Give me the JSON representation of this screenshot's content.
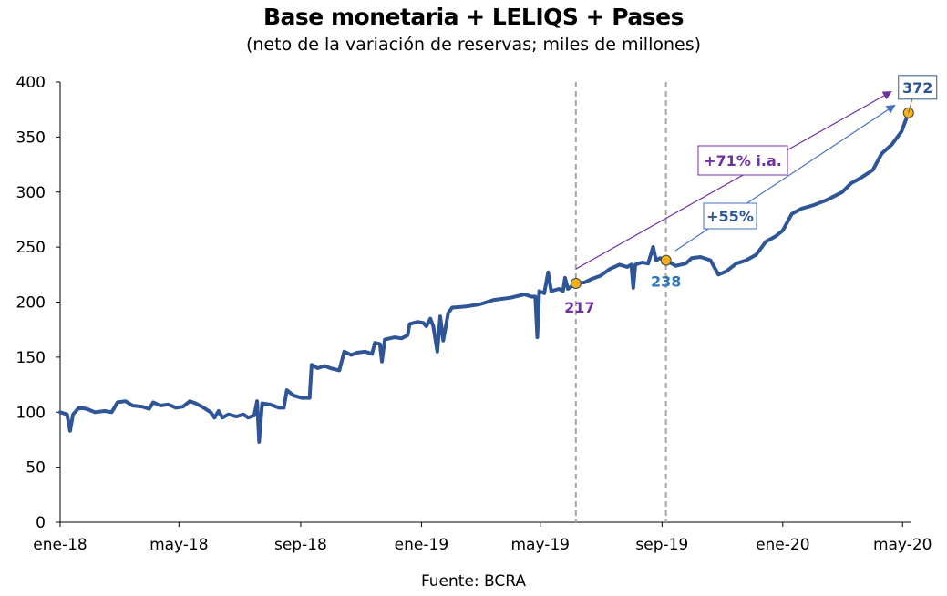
{
  "chart_data": {
    "type": "line",
    "title": "Base monetaria + LELIQS + Pases",
    "subtitle": "(neto de la variación de reservas; miles de millones)",
    "source": "Fuente: BCRA",
    "xlabel": "",
    "ylabel": "",
    "ylim": [
      0,
      400
    ],
    "yticks": [
      0,
      50,
      100,
      150,
      200,
      250,
      300,
      350,
      400
    ],
    "xlim": [
      "2018-01-01",
      "2020-05-10"
    ],
    "xticks": [
      {
        "date": "2018-01-01",
        "label": "ene-18"
      },
      {
        "date": "2018-05-01",
        "label": "may-18"
      },
      {
        "date": "2018-09-01",
        "label": "sep-18"
      },
      {
        "date": "2019-01-01",
        "label": "ene-19"
      },
      {
        "date": "2019-05-01",
        "label": "may-19"
      },
      {
        "date": "2019-09-01",
        "label": "sep-19"
      },
      {
        "date": "2020-01-01",
        "label": "ene-20"
      },
      {
        "date": "2020-05-01",
        "label": "may-20"
      }
    ],
    "grid": false,
    "legend": "none",
    "colors": {
      "series": "#2e5597",
      "highlight_point": "#f2b21b",
      "purple": "#7030a0",
      "blue_label": "#2e75b6",
      "arrow_blue": "#4472c4",
      "dashed_line": "#a6a6a6"
    },
    "series": [
      {
        "values": [
          [
            "2018-01-01",
            100
          ],
          [
            "2018-01-08",
            98
          ],
          [
            "2018-01-11",
            83
          ],
          [
            "2018-01-14",
            98
          ],
          [
            "2018-01-20",
            104
          ],
          [
            "2018-01-28",
            103
          ],
          [
            "2018-02-05",
            100
          ],
          [
            "2018-02-15",
            101
          ],
          [
            "2018-02-22",
            100
          ],
          [
            "2018-02-28",
            109
          ],
          [
            "2018-03-08",
            110
          ],
          [
            "2018-03-15",
            106
          ],
          [
            "2018-03-25",
            105
          ],
          [
            "2018-04-01",
            103
          ],
          [
            "2018-04-05",
            109
          ],
          [
            "2018-04-12",
            106
          ],
          [
            "2018-04-20",
            107
          ],
          [
            "2018-04-28",
            104
          ],
          [
            "2018-05-05",
            105
          ],
          [
            "2018-05-12",
            110
          ],
          [
            "2018-05-18",
            108
          ],
          [
            "2018-05-26",
            104
          ],
          [
            "2018-06-02",
            100
          ],
          [
            "2018-06-06",
            95
          ],
          [
            "2018-06-10",
            101
          ],
          [
            "2018-06-14",
            95
          ],
          [
            "2018-06-20",
            98
          ],
          [
            "2018-06-28",
            96
          ],
          [
            "2018-07-05",
            98
          ],
          [
            "2018-07-10",
            95
          ],
          [
            "2018-07-16",
            97
          ],
          [
            "2018-07-19",
            110
          ],
          [
            "2018-07-21",
            73
          ],
          [
            "2018-07-24",
            108
          ],
          [
            "2018-08-01",
            107
          ],
          [
            "2018-08-10",
            104
          ],
          [
            "2018-08-15",
            104
          ],
          [
            "2018-08-18",
            120
          ],
          [
            "2018-08-25",
            115
          ],
          [
            "2018-09-02",
            113
          ],
          [
            "2018-09-10",
            113
          ],
          [
            "2018-09-12",
            143
          ],
          [
            "2018-09-18",
            140
          ],
          [
            "2018-09-25",
            142
          ],
          [
            "2018-10-01",
            140
          ],
          [
            "2018-10-10",
            138
          ],
          [
            "2018-10-15",
            155
          ],
          [
            "2018-10-22",
            152
          ],
          [
            "2018-10-28",
            154
          ],
          [
            "2018-11-05",
            155
          ],
          [
            "2018-11-12",
            153
          ],
          [
            "2018-11-15",
            163
          ],
          [
            "2018-11-20",
            162
          ],
          [
            "2018-11-22",
            146
          ],
          [
            "2018-11-25",
            166
          ],
          [
            "2018-12-05",
            168
          ],
          [
            "2018-12-12",
            167
          ],
          [
            "2018-12-18",
            170
          ],
          [
            "2018-12-20",
            180
          ],
          [
            "2018-12-28",
            182
          ],
          [
            "2019-01-03",
            181
          ],
          [
            "2019-01-06",
            178
          ],
          [
            "2019-01-10",
            185
          ],
          [
            "2019-01-13",
            178
          ],
          [
            "2019-01-17",
            155
          ],
          [
            "2019-01-20",
            187
          ],
          [
            "2019-01-23",
            165
          ],
          [
            "2019-01-28",
            190
          ],
          [
            "2019-02-01",
            195
          ],
          [
            "2019-02-15",
            196
          ],
          [
            "2019-03-01",
            198
          ],
          [
            "2019-03-15",
            202
          ],
          [
            "2019-04-01",
            204
          ],
          [
            "2019-04-15",
            207
          ],
          [
            "2019-04-22",
            205
          ],
          [
            "2019-04-26",
            205
          ],
          [
            "2019-04-28",
            168
          ],
          [
            "2019-04-30",
            210
          ],
          [
            "2019-05-05",
            208
          ],
          [
            "2019-05-09",
            227
          ],
          [
            "2019-05-12",
            210
          ],
          [
            "2019-05-20",
            212
          ],
          [
            "2019-05-24",
            210
          ],
          [
            "2019-05-26",
            222
          ],
          [
            "2019-05-29",
            212
          ],
          [
            "2019-06-06",
            217
          ],
          [
            "2019-06-15",
            218
          ],
          [
            "2019-06-22",
            221
          ],
          [
            "2019-07-01",
            224
          ],
          [
            "2019-07-10",
            230
          ],
          [
            "2019-07-20",
            234
          ],
          [
            "2019-07-28",
            232
          ],
          [
            "2019-08-01",
            234
          ],
          [
            "2019-08-03",
            213
          ],
          [
            "2019-08-05",
            234
          ],
          [
            "2019-08-12",
            236
          ],
          [
            "2019-08-18",
            235
          ],
          [
            "2019-08-23",
            250
          ],
          [
            "2019-08-26",
            238
          ],
          [
            "2019-08-30",
            240
          ],
          [
            "2019-09-05",
            238
          ],
          [
            "2019-09-15",
            233
          ],
          [
            "2019-09-25",
            235
          ],
          [
            "2019-10-01",
            240
          ],
          [
            "2019-10-10",
            241
          ],
          [
            "2019-10-20",
            238
          ],
          [
            "2019-10-28",
            225
          ],
          [
            "2019-11-05",
            228
          ],
          [
            "2019-11-15",
            235
          ],
          [
            "2019-11-25",
            238
          ],
          [
            "2019-12-05",
            243
          ],
          [
            "2019-12-15",
            255
          ],
          [
            "2019-12-25",
            260
          ],
          [
            "2020-01-01",
            265
          ],
          [
            "2020-01-10",
            280
          ],
          [
            "2020-01-20",
            285
          ],
          [
            "2020-02-01",
            288
          ],
          [
            "2020-02-15",
            293
          ],
          [
            "2020-03-01",
            300
          ],
          [
            "2020-03-10",
            308
          ],
          [
            "2020-03-20",
            313
          ],
          [
            "2020-04-01",
            320
          ],
          [
            "2020-04-10",
            335
          ],
          [
            "2020-04-20",
            343
          ],
          [
            "2020-04-30",
            355
          ],
          [
            "2020-05-07",
            372
          ]
        ]
      }
    ],
    "highlight_points": [
      {
        "date": "2019-06-06",
        "value": 217,
        "label": "217",
        "label_color": "#7030a0"
      },
      {
        "date": "2019-09-05",
        "value": 238,
        "label": "238",
        "label_color": "#2e75b6"
      },
      {
        "date": "2020-05-07",
        "value": 372,
        "label": "372",
        "label_color": "#2e5597"
      }
    ],
    "vertical_markers": [
      "2019-06-06",
      "2019-09-05"
    ],
    "annotations": [
      {
        "text": "+71% i.a.",
        "color": "#7030a0"
      },
      {
        "text": "+55%",
        "color": "#2e5597"
      }
    ]
  }
}
